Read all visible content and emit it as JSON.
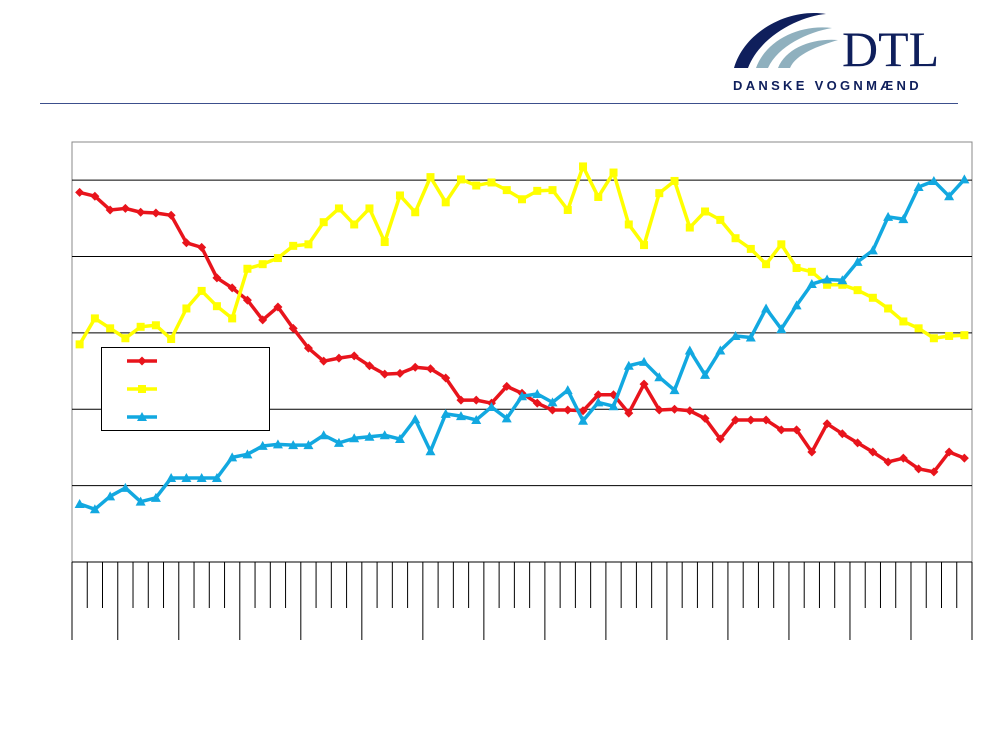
{
  "logo": {
    "title": "DTL",
    "subtitle": "DANSKE VOGNMÆND"
  },
  "chart_data": {
    "type": "line",
    "categories": [
      null,
      null,
      null,
      null,
      null,
      null,
      null,
      null,
      null,
      null,
      null,
      null,
      null,
      null,
      null,
      null,
      null,
      null,
      null,
      null,
      null,
      null,
      null,
      null,
      null,
      null,
      null,
      null,
      null,
      null,
      null,
      null,
      null,
      null,
      null,
      null,
      null,
      null,
      null,
      null,
      null,
      null,
      null,
      null,
      null,
      null,
      null,
      null,
      null,
      null,
      null,
      null,
      null,
      null,
      null,
      null,
      null,
      null,
      null
    ],
    "ylim": [
      0,
      5.5
    ],
    "yticks": [
      1,
      2,
      3,
      4,
      5
    ],
    "grid": true,
    "series": [
      {
        "color": "#e8141c",
        "marker": "diamond",
        "values": [
          4.84,
          4.79,
          4.61,
          4.63,
          4.58,
          4.57,
          4.54,
          4.18,
          4.12,
          3.72,
          3.59,
          3.43,
          3.17,
          3.34,
          3.06,
          2.8,
          2.63,
          2.67,
          2.7,
          2.57,
          2.46,
          2.47,
          2.55,
          2.53,
          2.41,
          2.12,
          2.12,
          2.08,
          2.3,
          2.21,
          2.08,
          1.99,
          1.99,
          1.98,
          2.19,
          2.19,
          1.95,
          2.33,
          1.99,
          2.0,
          1.98,
          1.88,
          1.61,
          1.86,
          1.86,
          1.86,
          1.73,
          1.73,
          1.44,
          1.81,
          1.68,
          1.56,
          1.44,
          1.31,
          1.36,
          1.22,
          1.18,
          1.44,
          1.36
        ]
      },
      {
        "color": "#ffff00",
        "marker": "square",
        "values": [
          2.85,
          3.19,
          3.06,
          2.93,
          3.08,
          3.1,
          2.92,
          3.32,
          3.55,
          3.35,
          3.19,
          3.84,
          3.9,
          3.98,
          4.14,
          4.16,
          4.45,
          4.63,
          4.42,
          4.63,
          4.19,
          4.8,
          4.58,
          5.04,
          4.71,
          5.01,
          4.93,
          4.97,
          4.87,
          4.75,
          4.86,
          4.87,
          4.61,
          5.18,
          4.78,
          5.1,
          4.42,
          4.15,
          4.83,
          4.99,
          4.38,
          4.59,
          4.48,
          4.24,
          4.1,
          3.9,
          4.16,
          3.85,
          3.8,
          3.63,
          3.63,
          3.56,
          3.46,
          3.32,
          3.15,
          3.06,
          2.93,
          2.96,
          2.97
        ]
      },
      {
        "color": "#12a8e0",
        "marker": "triangle",
        "values": [
          0.76,
          0.69,
          0.86,
          0.97,
          0.79,
          0.84,
          1.1,
          1.1,
          1.1,
          1.1,
          1.37,
          1.41,
          1.52,
          1.54,
          1.53,
          1.53,
          1.66,
          1.56,
          1.62,
          1.64,
          1.66,
          1.61,
          1.87,
          1.45,
          1.94,
          1.91,
          1.86,
          2.03,
          1.88,
          2.17,
          2.2,
          2.09,
          2.25,
          1.85,
          2.09,
          2.04,
          2.57,
          2.62,
          2.42,
          2.25,
          2.77,
          2.45,
          2.77,
          2.96,
          2.94,
          3.32,
          3.05,
          3.36,
          3.64,
          3.7,
          3.69,
          3.93,
          4.08,
          4.52,
          4.49,
          4.91,
          4.99,
          4.79,
          5.01
        ]
      }
    ]
  }
}
